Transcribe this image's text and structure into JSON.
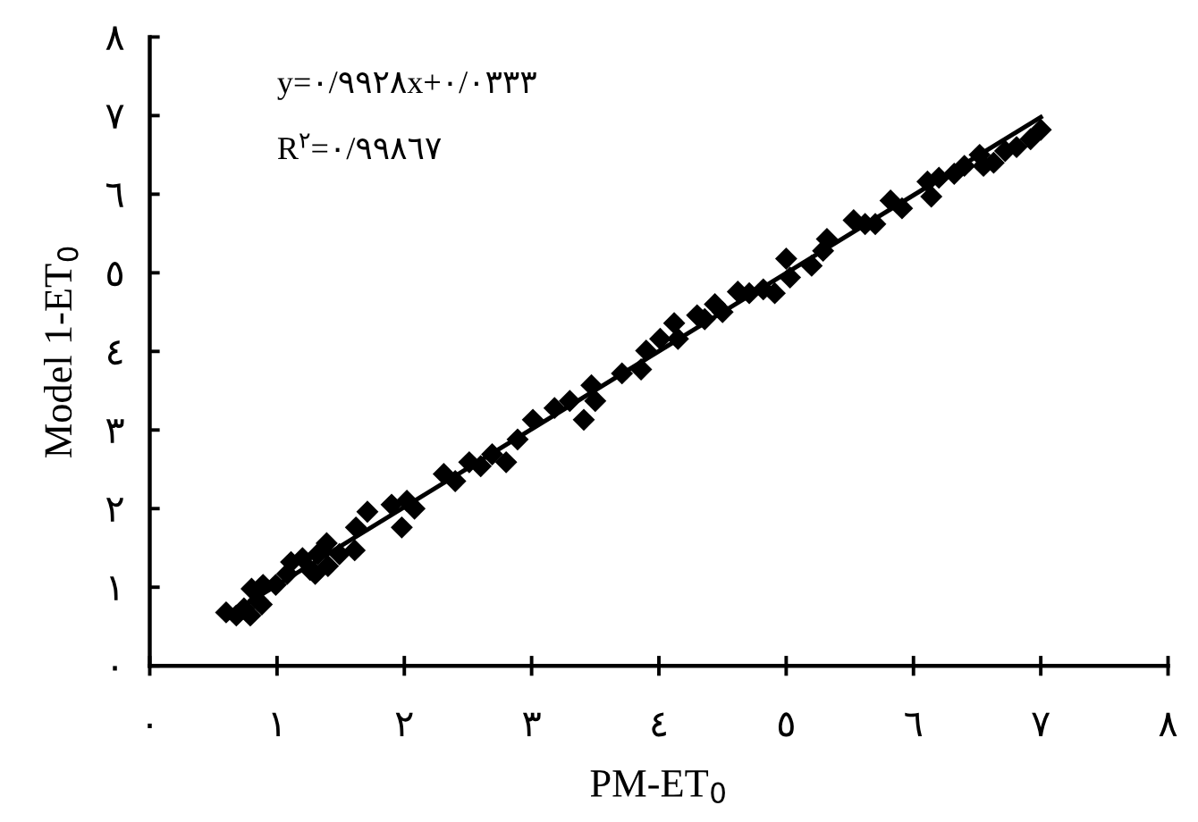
{
  "chart_data": {
    "type": "scatter",
    "xlabel": "PM-ET$_{0}$",
    "ylabel": "Model 1-ET$_{0}$",
    "annotations": [
      "y=٠/٩٩٢٨x+٠/٠٣٣٣",
      "R$^{٢}$=٠/٩٩٨٦٧"
    ],
    "xlim": [
      0,
      8
    ],
    "ylim": [
      0,
      8
    ],
    "xticks": [
      {
        "value": 0,
        "label": "٠"
      },
      {
        "value": 1,
        "label": "١"
      },
      {
        "value": 2,
        "label": "٢"
      },
      {
        "value": 3,
        "label": "٣"
      },
      {
        "value": 4,
        "label": "٤"
      },
      {
        "value": 5,
        "label": "٥"
      },
      {
        "value": 6,
        "label": "٦"
      },
      {
        "value": 7,
        "label": "٧"
      },
      {
        "value": 8,
        "label": "٨"
      }
    ],
    "yticks": [
      {
        "value": 0,
        "label": "٠"
      },
      {
        "value": 1,
        "label": "١"
      },
      {
        "value": 2,
        "label": "٢"
      },
      {
        "value": 3,
        "label": "٣"
      },
      {
        "value": 4,
        "label": "٤"
      },
      {
        "value": 5,
        "label": "٥"
      },
      {
        "value": 6,
        "label": "٦"
      },
      {
        "value": 7,
        "label": "٧"
      },
      {
        "value": 8,
        "label": "٨"
      }
    ],
    "grid": false,
    "marker": "diamond",
    "series": [
      {
        "color": "#000000",
        "x": [
          0.6,
          0.68,
          0.74,
          0.79,
          0.8,
          0.85,
          0.89,
          0.88,
          0.99,
          1.08,
          1.11,
          1.2,
          1.26,
          1.3,
          1.32,
          1.39,
          1.4,
          1.49,
          1.61,
          1.62,
          1.71,
          1.9,
          1.98,
          2.02,
          2.08,
          2.31,
          2.4,
          2.51,
          2.6,
          2.69,
          2.8,
          2.89,
          3.01,
          3.18,
          3.3,
          3.41,
          3.47,
          3.5,
          3.71,
          3.86,
          3.9,
          4.01,
          4.12,
          4.15,
          4.3,
          4.36,
          4.44,
          4.5,
          4.62,
          4.71,
          4.82,
          4.91,
          5.0,
          5.03,
          5.2,
          5.32,
          5.29,
          5.53,
          5.62,
          5.7,
          5.82,
          5.91,
          6.11,
          6.14,
          6.2,
          6.32,
          6.4,
          6.52,
          6.55,
          6.63,
          6.72,
          6.81,
          6.92,
          7.0
        ],
        "values": [
          0.68,
          0.64,
          0.73,
          0.64,
          0.98,
          0.83,
          1.03,
          0.78,
          1.03,
          1.17,
          1.32,
          1.37,
          1.22,
          1.17,
          1.42,
          1.56,
          1.27,
          1.42,
          1.47,
          1.76,
          1.96,
          2.05,
          1.76,
          2.1,
          2.0,
          2.44,
          2.35,
          2.59,
          2.54,
          2.69,
          2.59,
          2.88,
          3.13,
          3.28,
          3.37,
          3.13,
          3.57,
          3.37,
          3.72,
          3.77,
          4.01,
          4.16,
          4.36,
          4.16,
          4.46,
          4.41,
          4.6,
          4.5,
          4.76,
          4.74,
          4.79,
          4.74,
          5.18,
          4.94,
          5.09,
          5.43,
          5.28,
          5.67,
          5.62,
          5.62,
          5.92,
          5.82,
          6.16,
          5.97,
          6.21,
          6.26,
          6.36,
          6.5,
          6.36,
          6.4,
          6.55,
          6.6,
          6.7,
          6.82
        ]
      },
      {
        "type": "line",
        "color": "#000000",
        "marker": "none",
        "x": [
          0.6,
          7.0
        ],
        "values": [
          0.63,
          6.98
        ]
      }
    ]
  }
}
